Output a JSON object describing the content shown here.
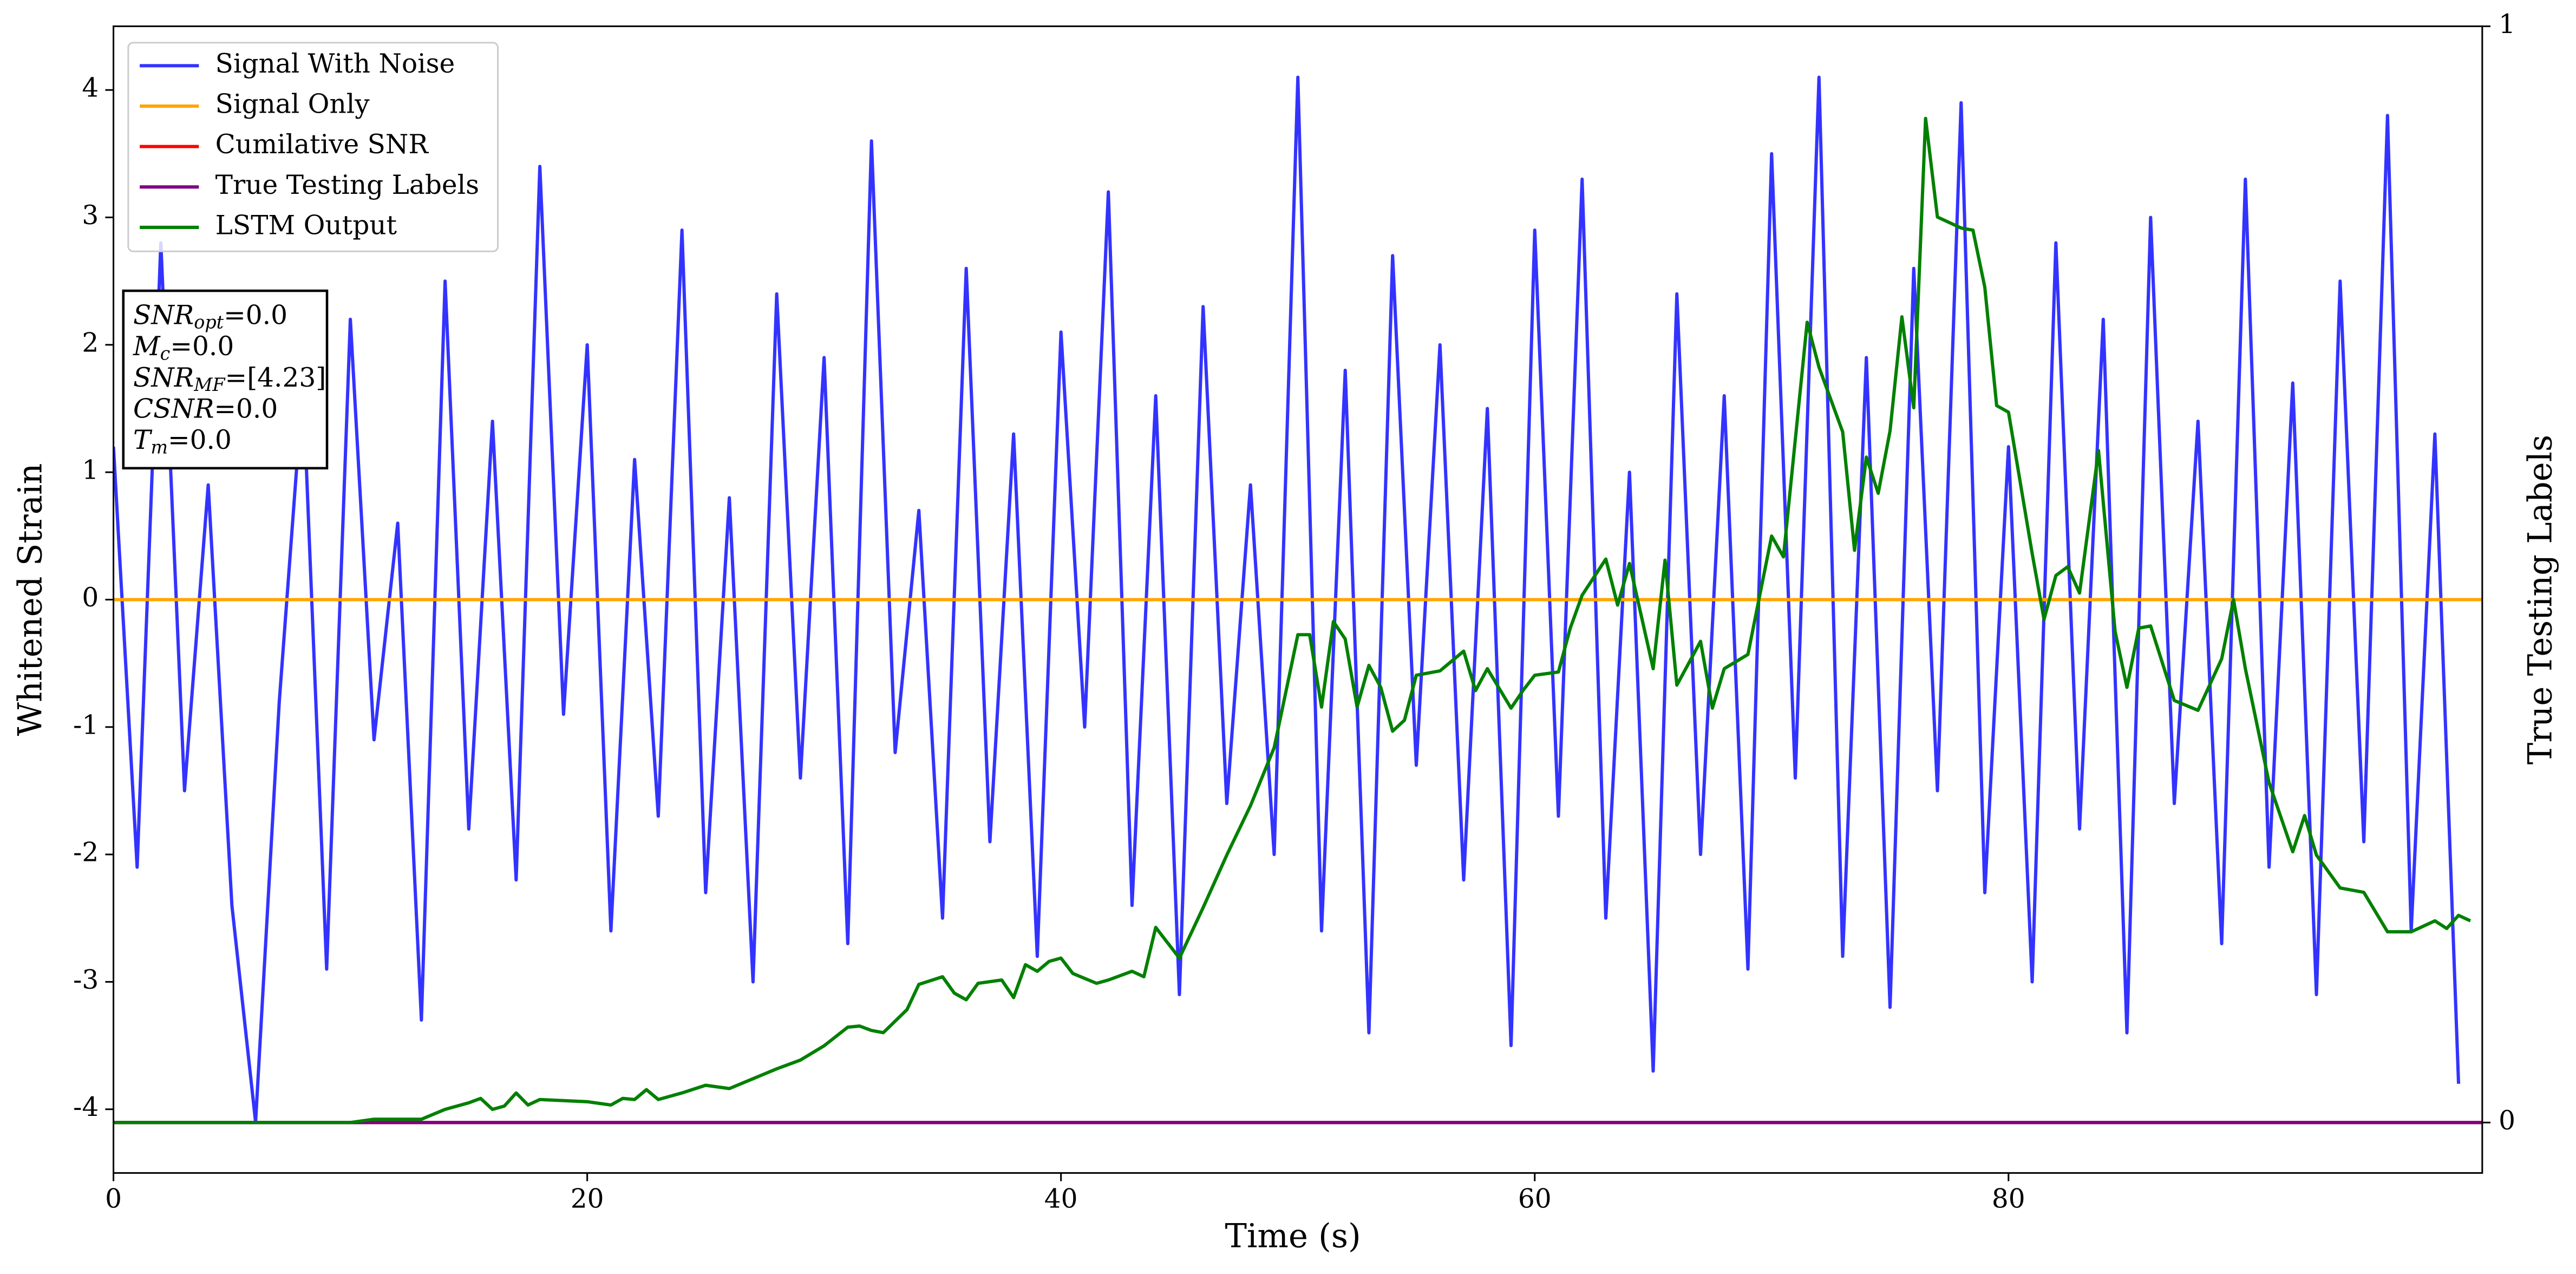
{
  "chart_data": {
    "type": "line",
    "xlabel": "Time (s)",
    "ylabel": "Whitened Strain",
    "y2label": "True Testing Labels",
    "xlim": [
      0,
      100
    ],
    "ylim": [
      -4.5,
      4.5
    ],
    "y2lim": [
      -0.046,
      1
    ],
    "xticks": [
      0,
      20,
      40,
      60,
      80
    ],
    "yticks": [
      -4,
      -3,
      -2,
      -1,
      0,
      1,
      2,
      3,
      4
    ],
    "y2ticks": [
      0,
      1
    ],
    "legend": "upper left",
    "series": [
      {
        "name": "Signal With Noise",
        "color": "#3333ff",
        "axis": "y",
        "x": [
          0,
          1,
          2,
          3,
          4,
          5,
          6,
          7,
          8,
          9,
          10,
          11,
          12,
          13,
          14,
          15,
          16,
          17,
          18,
          19,
          20,
          21,
          22,
          23,
          24,
          25,
          26,
          27,
          28,
          29,
          30,
          31,
          32,
          33,
          34,
          35,
          36,
          37,
          38,
          39,
          40,
          41,
          42,
          43,
          44,
          45,
          46,
          47,
          48,
          49,
          50,
          51,
          52,
          53,
          54,
          55,
          56,
          57,
          58,
          59,
          60,
          61,
          62,
          63,
          64,
          65,
          66,
          67,
          68,
          69,
          70,
          71,
          72,
          73,
          74,
          75,
          76,
          77,
          78,
          79,
          80,
          81,
          82,
          83,
          84,
          85,
          86,
          87,
          88,
          89,
          90,
          91,
          92,
          93,
          94,
          95,
          96,
          97,
          98,
          99
        ],
        "values": [
          1.2,
          -2.1,
          2.8,
          -1.5,
          0.9,
          -2.4,
          -4.1,
          -0.8,
          1.7,
          -2.9,
          2.2,
          -1.1,
          0.6,
          -3.3,
          2.5,
          -1.8,
          1.4,
          -2.2,
          3.4,
          -0.9,
          2.0,
          -2.6,
          1.1,
          -1.7,
          2.9,
          -2.3,
          0.8,
          -3.0,
          2.4,
          -1.4,
          1.9,
          -2.7,
          3.6,
          -1.2,
          0.7,
          -2.5,
          2.6,
          -1.9,
          1.3,
          -2.8,
          2.1,
          -1.0,
          3.2,
          -2.4,
          1.6,
          -3.1,
          2.3,
          -1.6,
          0.9,
          -2.0,
          4.1,
          -2.6,
          1.8,
          -3.4,
          2.7,
          -1.3,
          2.0,
          -2.2,
          1.5,
          -3.5,
          2.9,
          -1.7,
          3.3,
          -2.5,
          1.0,
          -3.7,
          2.4,
          -2.0,
          1.6,
          -2.9,
          3.5,
          -1.4,
          4.1,
          -2.8,
          1.9,
          -3.2,
          2.6,
          -1.5,
          3.9,
          -2.3,
          1.2,
          -3.0,
          2.8,
          -1.8,
          2.2,
          -3.4,
          3.0,
          -1.6,
          1.4,
          -2.7,
          3.3,
          -2.1,
          1.7,
          -3.1,
          2.5,
          -1.9,
          3.8,
          -2.6,
          1.3,
          -3.8
        ]
      },
      {
        "name": "Signal Only",
        "color": "#ffa500",
        "axis": "y",
        "x": [
          0,
          100
        ],
        "values": [
          0,
          0
        ]
      },
      {
        "name": "Cumilative SNR",
        "color": "#ff0000",
        "axis": "y2",
        "x": [
          0,
          100
        ],
        "values": [
          0,
          0
        ]
      },
      {
        "name": "True Testing Labels",
        "color": "#800080",
        "axis": "y2",
        "x": [
          0,
          100
        ],
        "values": [
          0,
          0
        ]
      },
      {
        "name": "LSTM Output",
        "color": "#008000",
        "axis": "y2",
        "x": [
          0,
          10,
          11,
          13,
          14,
          15,
          15.5,
          16,
          16.5,
          17,
          17.5,
          18,
          20,
          21,
          21.5,
          22,
          22.5,
          23,
          24,
          25,
          26,
          27,
          28,
          29,
          30,
          31,
          31.5,
          32,
          32.5,
          33.5,
          34,
          35,
          35.5,
          36,
          36.5,
          37.5,
          38,
          38.5,
          39,
          39.5,
          40,
          40.5,
          41.5,
          42,
          43,
          43.5,
          44,
          45,
          46,
          47,
          48,
          49,
          50,
          50.5,
          51,
          51.5,
          52,
          52.5,
          53,
          53.5,
          54,
          54.5,
          55,
          56,
          57,
          57.5,
          58,
          59,
          59.5,
          60,
          61,
          61.5,
          62,
          63,
          63.5,
          64,
          65,
          65.5,
          66,
          67,
          67.5,
          68,
          69,
          70,
          70.5,
          71.5,
          72,
          73,
          73.5,
          74,
          74.5,
          75,
          75.5,
          76,
          76.5,
          77,
          78,
          78.5,
          79,
          79.5,
          80,
          81,
          81.5,
          82,
          82.5,
          83,
          83.8,
          84.5,
          85,
          85.5,
          86,
          87,
          88,
          89,
          89.5,
          90,
          91,
          92,
          92.5,
          93,
          94,
          95,
          96,
          97,
          98,
          98.5,
          99,
          99.5
        ],
        "values": [
          0,
          0,
          0.003,
          0.003,
          0.012,
          0.018,
          0.022,
          0.012,
          0.015,
          0.027,
          0.016,
          0.021,
          0.019,
          0.016,
          0.022,
          0.021,
          0.03,
          0.021,
          0.027,
          0.034,
          0.031,
          0.04,
          0.049,
          0.057,
          0.07,
          0.087,
          0.088,
          0.084,
          0.082,
          0.103,
          0.126,
          0.133,
          0.118,
          0.112,
          0.127,
          0.13,
          0.114,
          0.144,
          0.138,
          0.147,
          0.15,
          0.136,
          0.127,
          0.13,
          0.138,
          0.133,
          0.178,
          0.15,
          0.196,
          0.244,
          0.289,
          0.342,
          0.445,
          0.445,
          0.379,
          0.457,
          0.441,
          0.379,
          0.417,
          0.397,
          0.357,
          0.367,
          0.408,
          0.412,
          0.43,
          0.394,
          0.414,
          0.378,
          0.394,
          0.408,
          0.411,
          0.451,
          0.481,
          0.514,
          0.472,
          0.51,
          0.414,
          0.513,
          0.399,
          0.439,
          0.378,
          0.414,
          0.427,
          0.535,
          0.516,
          0.73,
          0.689,
          0.63,
          0.522,
          0.607,
          0.574,
          0.631,
          0.735,
          0.652,
          0.916,
          0.826,
          0.816,
          0.814,
          0.762,
          0.654,
          0.648,
          0.519,
          0.459,
          0.499,
          0.507,
          0.483,
          0.613,
          0.448,
          0.397,
          0.451,
          0.453,
          0.385,
          0.376,
          0.423,
          0.477,
          0.414,
          0.31,
          0.247,
          0.28,
          0.244,
          0.214,
          0.21,
          0.174,
          0.174,
          0.184,
          0.177,
          0.189,
          0.184
        ]
      }
    ],
    "annotation": [
      {
        "symbol": "SNR",
        "subscript": "opt",
        "text": "=0.0"
      },
      {
        "symbol": "M",
        "subscript": "c",
        "text": "=0.0"
      },
      {
        "symbol": "SNR",
        "subscript": "MF",
        "text": "=[4.23]"
      },
      {
        "symbol": "CSNR",
        "text": "=0.0"
      },
      {
        "symbol": "T",
        "subscript": "m",
        "text": "=0.0"
      }
    ]
  }
}
